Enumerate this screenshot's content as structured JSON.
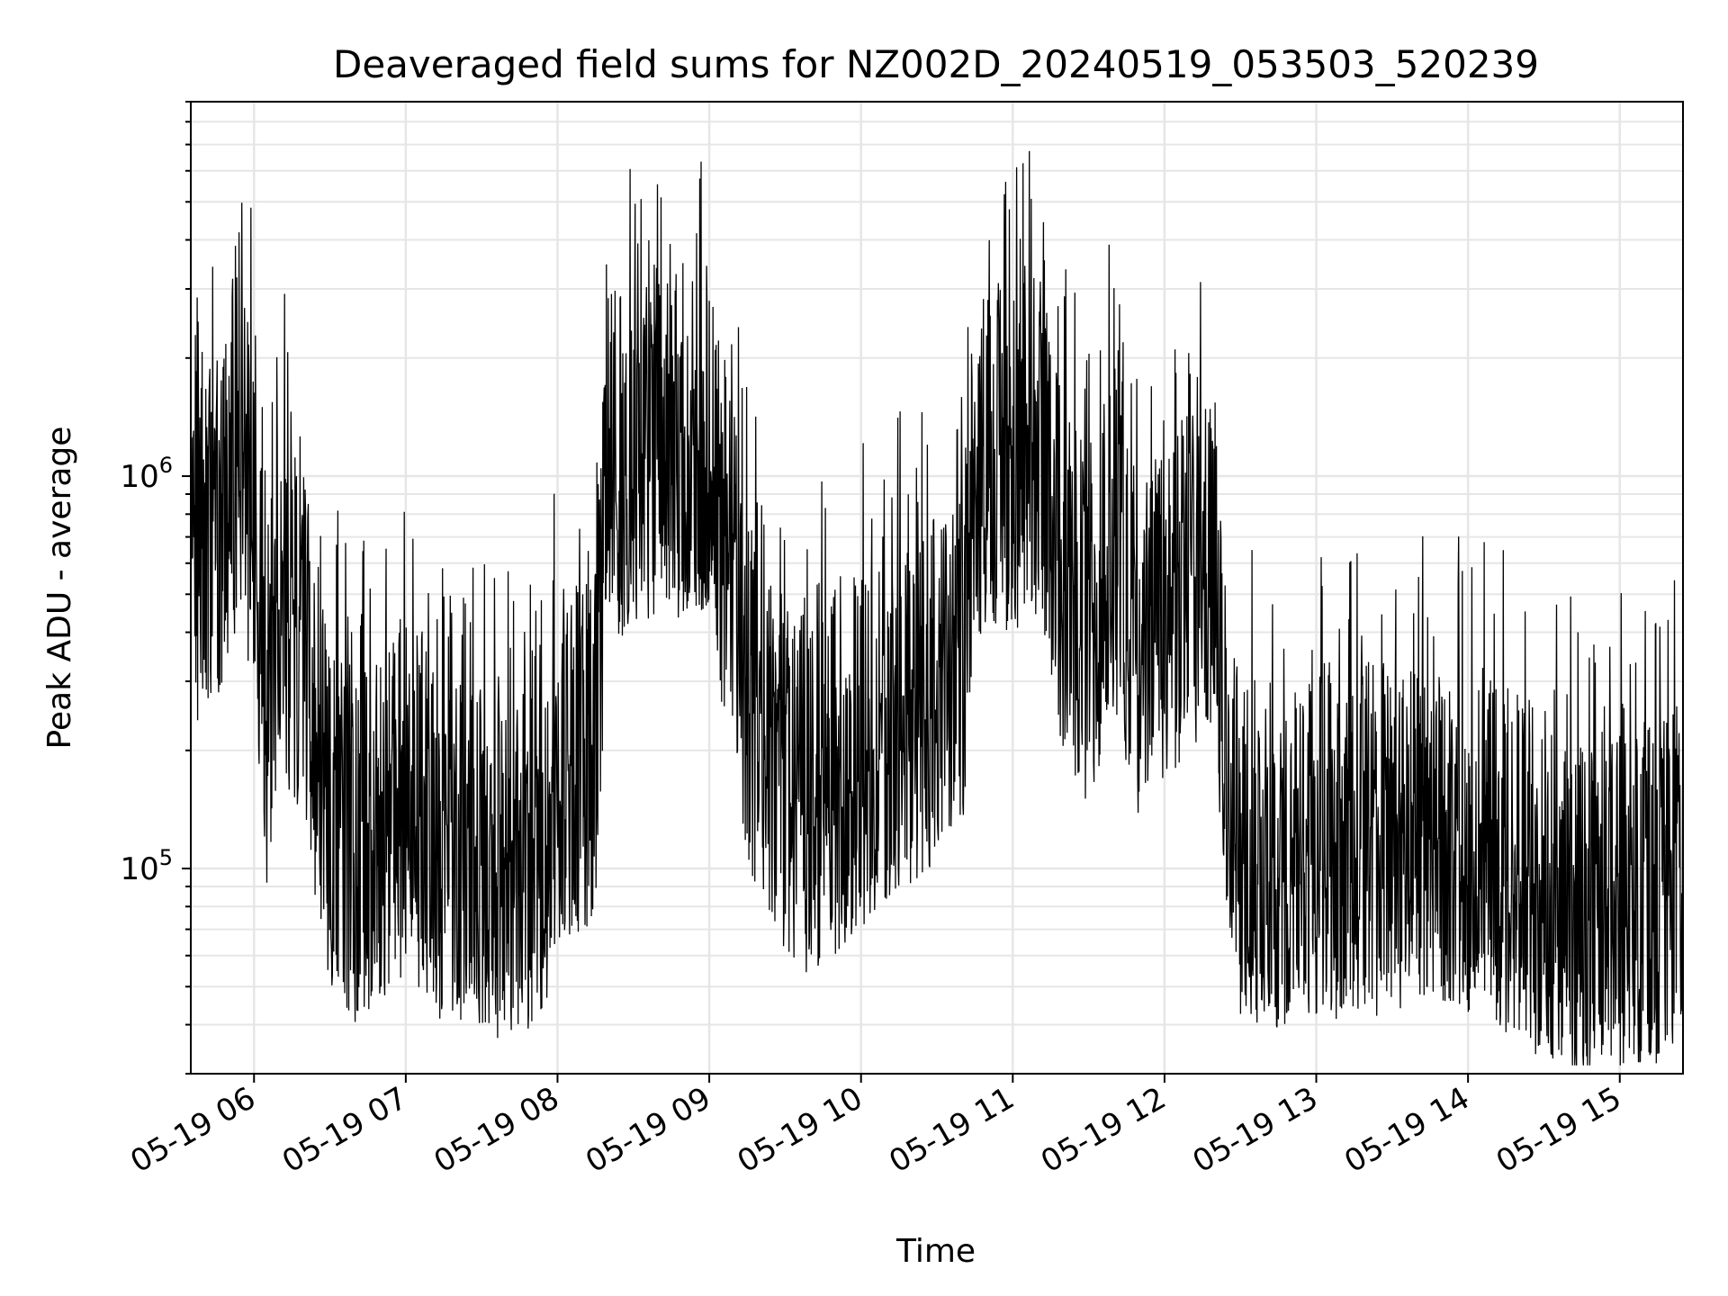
{
  "chart_data": {
    "type": "line",
    "title": "Deaveraged field sums for NZ002D_20240519_053503_520239",
    "xlabel": "Time",
    "ylabel": "Peak ADU - average",
    "y_scale": "log",
    "grid": true,
    "line_color": "#000000",
    "grid_color": "#e6e6e6",
    "x_range": [
      "2024-05-19 05:35",
      "2024-05-19 15:25"
    ],
    "ylim": [
      30000,
      9000000
    ],
    "x_tick_labels": [
      "05-19 06",
      "05-19 07",
      "05-19 08",
      "05-19 09",
      "05-19 10",
      "05-19 11",
      "05-19 12",
      "05-19 13",
      "05-19 14",
      "05-19 15"
    ],
    "y_tick_labels": [
      {
        "base": "10",
        "exp": "5",
        "value": 100000
      },
      {
        "base": "10",
        "exp": "6",
        "value": 1000000
      }
    ],
    "series": [
      {
        "x": [
          "05:35",
          "05:45",
          "05:55",
          "06:00",
          "06:05",
          "06:10",
          "06:20",
          "06:30",
          "06:40",
          "06:50",
          "07:00",
          "07:10",
          "07:20",
          "07:30",
          "07:40",
          "07:50",
          "08:00",
          "08:10",
          "08:15",
          "08:20",
          "08:30",
          "08:40",
          "08:50",
          "09:00",
          "09:10",
          "09:15",
          "09:20",
          "09:30",
          "09:40",
          "09:50",
          "10:00",
          "10:10",
          "10:20",
          "10:30",
          "10:40",
          "10:45",
          "10:50",
          "11:00",
          "11:10",
          "11:20",
          "11:30",
          "11:40",
          "11:50",
          "12:00",
          "12:10",
          "12:20",
          "12:25",
          "12:30",
          "12:40",
          "12:50",
          "13:00",
          "13:10",
          "13:20",
          "13:30",
          "13:40",
          "13:50",
          "14:00",
          "14:10",
          "14:20",
          "14:30",
          "14:40",
          "14:50",
          "15:00",
          "15:10",
          "15:20",
          "15:25"
        ],
        "values": [
          600000,
          700000,
          1300000,
          700000,
          250000,
          500000,
          350000,
          140000,
          110000,
          130000,
          150000,
          120000,
          110000,
          110000,
          100000,
          110000,
          150000,
          200000,
          200000,
          1200000,
          1000000,
          1300000,
          1200000,
          1100000,
          500000,
          300000,
          220000,
          170000,
          150000,
          170000,
          200000,
          220000,
          260000,
          280000,
          300000,
          900000,
          1200000,
          1100000,
          1200000,
          550000,
          400000,
          700000,
          350000,
          450000,
          550000,
          600000,
          160000,
          120000,
          110000,
          110000,
          120000,
          110000,
          120000,
          110000,
          120000,
          110000,
          120000,
          110000,
          100000,
          90000,
          80000,
          85000,
          80000,
          90000,
          85000,
          90000
        ]
      }
    ]
  }
}
